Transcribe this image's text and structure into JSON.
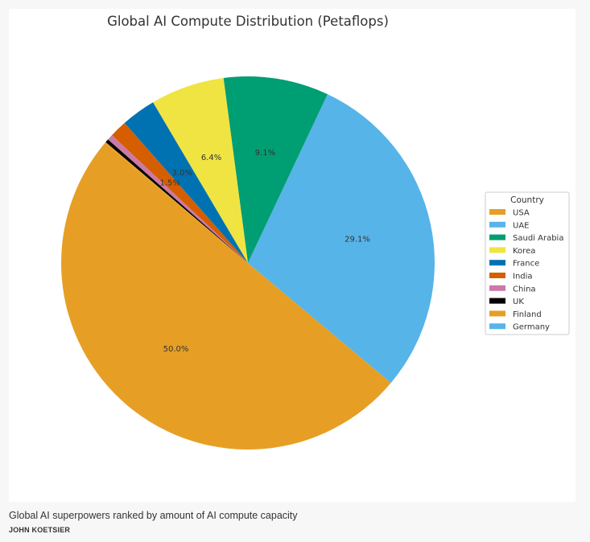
{
  "chart_data": {
    "type": "pie",
    "title": "Global AI Compute Distribution (Petaflops)",
    "legend_title": "Country",
    "legend_position": "right",
    "start_angle_deg": 140,
    "direction": "counterclockwise",
    "slices": [
      {
        "label": "USA",
        "value": 50.0,
        "color": "#E69F24",
        "pct_label": "50.0%"
      },
      {
        "label": "UAE",
        "value": 29.1,
        "color": "#56B4E9",
        "pct_label": "29.1%"
      },
      {
        "label": "Saudi Arabia",
        "value": 9.1,
        "color": "#009E73",
        "pct_label": "9.1%"
      },
      {
        "label": "Korea",
        "value": 6.4,
        "color": "#F0E442",
        "pct_label": "6.4%"
      },
      {
        "label": "France",
        "value": 3.0,
        "color": "#0072B2",
        "pct_label": "3.0%"
      },
      {
        "label": "India",
        "value": 1.5,
        "color": "#D55E00",
        "pct_label": "1.5%"
      },
      {
        "label": "China",
        "value": 0.5,
        "color": "#CC79A7",
        "pct_label": ""
      },
      {
        "label": "UK",
        "value": 0.3,
        "color": "#000000",
        "pct_label": ""
      },
      {
        "label": "Finland",
        "value": 0.1,
        "color": "#E69F24",
        "pct_label": ""
      },
      {
        "label": "Germany",
        "value": 0.0,
        "color": "#56B4E9",
        "pct_label": ""
      }
    ]
  },
  "caption": {
    "text": "Global AI superpowers ranked by amount of AI compute capacity",
    "credit": "JOHN KOETSIER"
  }
}
